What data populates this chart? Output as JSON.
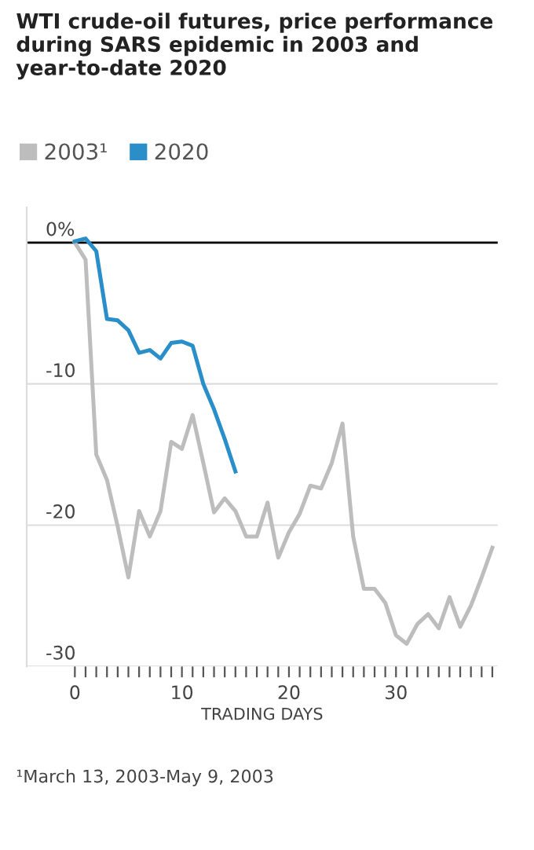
{
  "chart_data": {
    "type": "line",
    "title": "WTI crude-oil futures, price performance during SARS epidemic in 2003 and year-to-date 2020",
    "xlabel": "TRADING DAYS",
    "annotations": [
      "¹March 13, 2003-May 9, 2003"
    ],
    "series": [
      {
        "name": "2003¹",
        "color": "#bdbdbd",
        "x": [
          0,
          1,
          2,
          3,
          4,
          5,
          6,
          7,
          8,
          9,
          10,
          11,
          12,
          13,
          14,
          15,
          16,
          17,
          18,
          19,
          20,
          21,
          22,
          23,
          24,
          25,
          26,
          27,
          28,
          29,
          30,
          31,
          32,
          33,
          34,
          35,
          36,
          37,
          38,
          39
        ],
        "values": [
          0,
          -1.2,
          -15.0,
          -16.8,
          -20.1,
          -23.7,
          -19.0,
          -20.8,
          -19.0,
          -14.1,
          -14.6,
          -12.2,
          -15.6,
          -19.1,
          -18.1,
          -19.0,
          -20.8,
          -20.8,
          -18.4,
          -22.3,
          -20.5,
          -19.2,
          -17.2,
          -17.4,
          -15.6,
          -12.8,
          -20.8,
          -24.5,
          -24.5,
          -25.5,
          -27.8,
          -28.4,
          -27.0,
          -26.3,
          -27.3,
          -25.1,
          -27.2,
          -25.7,
          -23.7,
          -21.6
        ]
      },
      {
        "name": "2020",
        "color": "#2a8fc9",
        "x": [
          0,
          1,
          2,
          3,
          4,
          5,
          6,
          7,
          8,
          9,
          10,
          11,
          12,
          13,
          14,
          15
        ],
        "values": [
          0.1,
          0.3,
          -0.6,
          -5.4,
          -5.5,
          -6.2,
          -7.8,
          -7.6,
          -8.2,
          -7.1,
          -7.0,
          -7.3,
          -10.0,
          -11.8,
          -13.9,
          -16.2
        ]
      }
    ],
    "xlim": [
      -4.5,
      39.5
    ],
    "xticks": [
      0,
      {
        "value": 1,
        "label": null
      },
      {
        "value": 2,
        "label": null
      },
      {
        "value": 3,
        "label": null
      },
      {
        "value": 4,
        "label": null
      },
      {
        "value": 5,
        "label": null
      },
      {
        "value": 6,
        "label": null
      },
      {
        "value": 7,
        "label": null
      },
      {
        "value": 8,
        "label": null
      },
      {
        "value": 9,
        "label": null
      },
      10,
      {
        "value": 11,
        "label": null
      },
      {
        "value": 12,
        "label": null
      },
      {
        "value": 13,
        "label": null
      },
      {
        "value": 14,
        "label": null
      },
      {
        "value": 15,
        "label": null
      },
      {
        "value": 16,
        "label": null
      },
      {
        "value": 17,
        "label": null
      },
      {
        "value": 18,
        "label": null
      },
      {
        "value": 19,
        "label": null
      },
      20,
      {
        "value": 21,
        "label": null
      },
      {
        "value": 22,
        "label": null
      },
      {
        "value": 23,
        "label": null
      },
      {
        "value": 24,
        "label": null
      },
      {
        "value": 25,
        "label": null
      },
      {
        "value": 26,
        "label": null
      },
      {
        "value": 27,
        "label": null
      },
      {
        "value": 28,
        "label": null
      },
      {
        "value": 29,
        "label": null
      },
      30,
      {
        "value": 31,
        "label": null
      },
      {
        "value": 32,
        "label": null
      },
      {
        "value": 33,
        "label": null
      },
      {
        "value": 34,
        "label": null
      },
      {
        "value": 35,
        "label": null
      },
      {
        "value": 36,
        "label": null
      },
      {
        "value": 37,
        "label": null
      },
      {
        "value": 38,
        "label": null
      },
      {
        "value": 39,
        "label": null
      }
    ],
    "ylim": [
      -30,
      2.5
    ],
    "yticks": [
      {
        "value": 0,
        "label": "0%"
      },
      -10,
      -20,
      -30
    ],
    "ref_lines": [
      {
        "axis": "y",
        "value": 0,
        "color": "#000000"
      }
    ],
    "grid": "y",
    "legend": "top left",
    "marker": "none",
    "line_style": "solid"
  }
}
